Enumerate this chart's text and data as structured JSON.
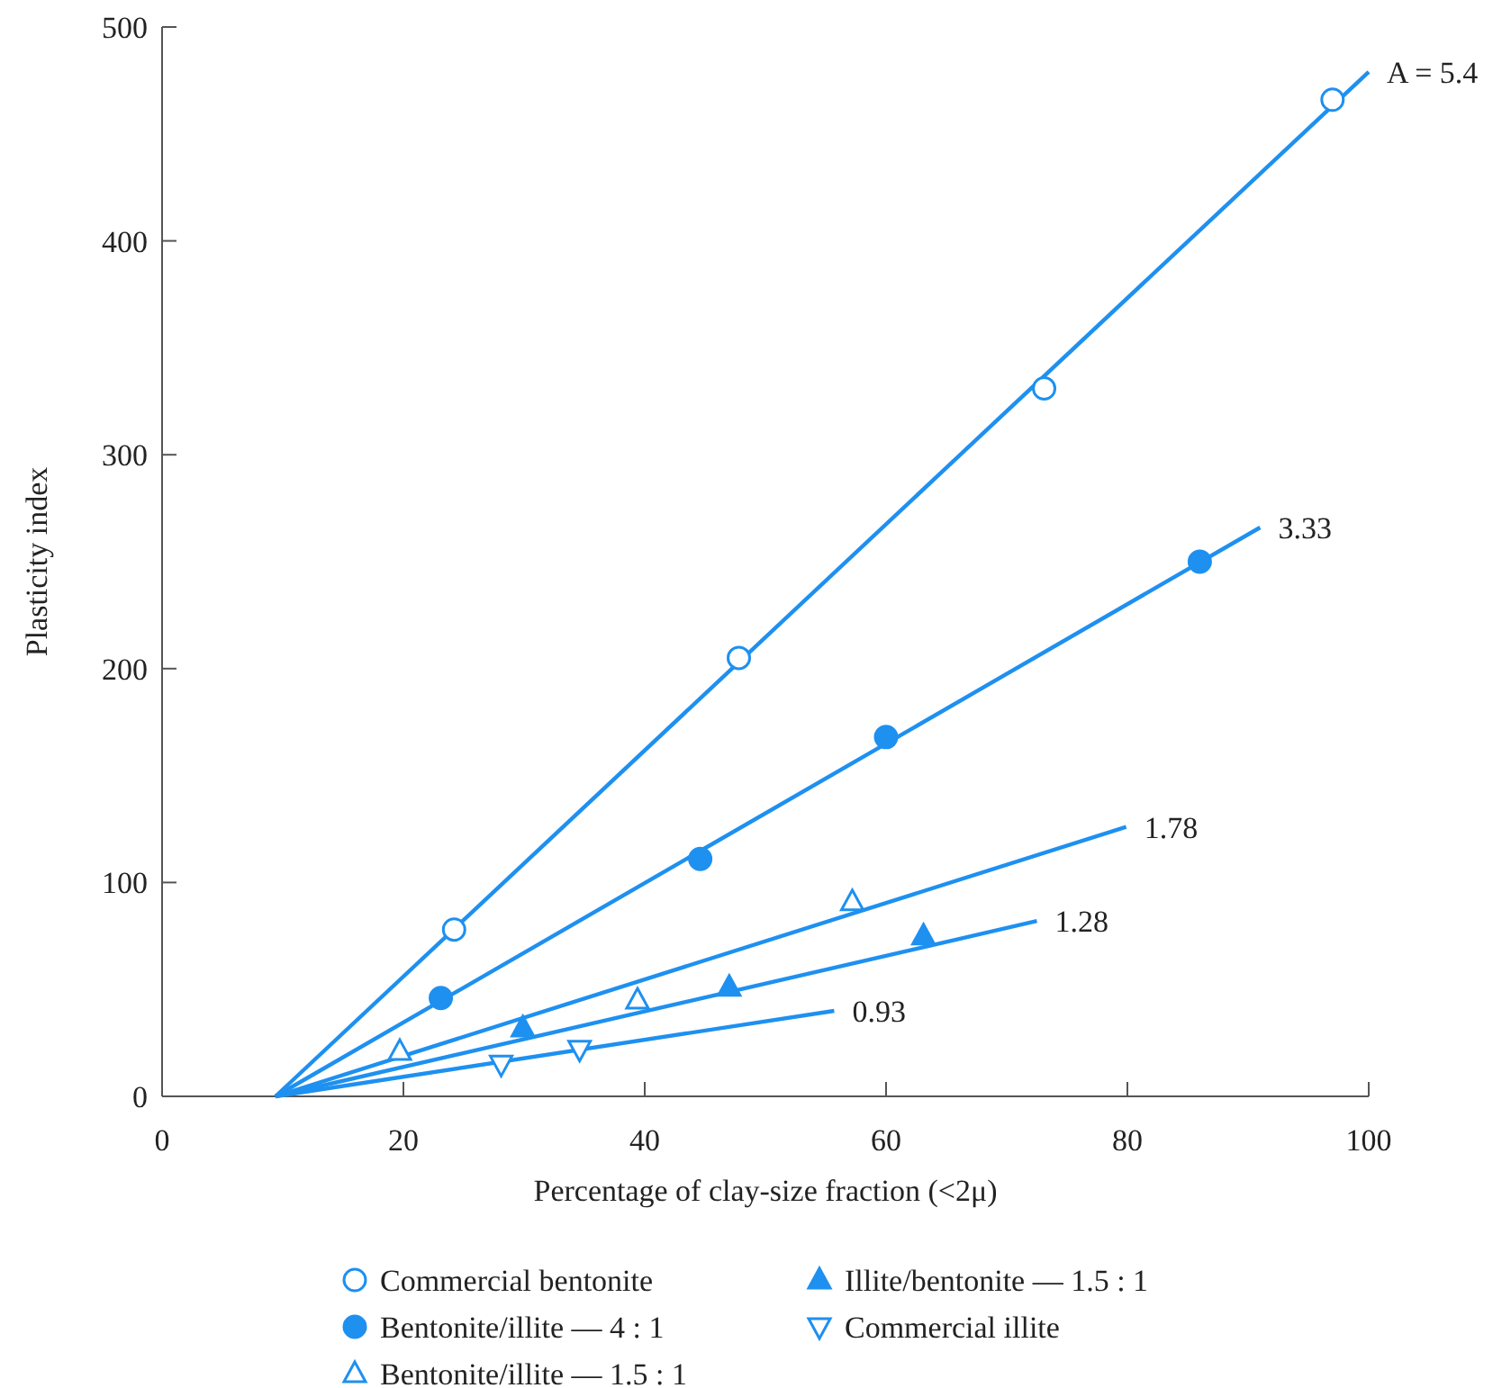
{
  "chart_data": {
    "type": "scatter",
    "xlabel": "Percentage of clay-size fraction (<2μ)",
    "ylabel": "Plasticity index",
    "xlim": [
      0,
      100
    ],
    "xticks": [
      0,
      20,
      40,
      60,
      80,
      100
    ],
    "ylim": [
      0,
      500
    ],
    "yticks": [
      0,
      100,
      200,
      300,
      400,
      500
    ],
    "grid": false,
    "legend": "bottom",
    "series": [
      {
        "name": "Commercial bentonite",
        "color": "#1e90f0",
        "marker": "circle-open",
        "x": [
          24.2,
          47.8,
          73.1,
          97
        ],
        "values": [
          78,
          205,
          331,
          466
        ]
      },
      {
        "name": "Bentonite/illite — 4 : 1",
        "color": "#1e90f0",
        "marker": "circle",
        "x": [
          23.1,
          44.6,
          60,
          86
        ],
        "values": [
          46,
          111,
          168,
          250
        ]
      },
      {
        "name": "Bentonite/illite — 1.5 : 1",
        "color": "#1e90f0",
        "marker": "triangle-open",
        "x": [
          19.7,
          39.4,
          57.2
        ],
        "values": [
          21,
          45,
          91
        ]
      },
      {
        "name": "Illite/bentonite — 1.5 : 1",
        "color": "#1e90f0",
        "marker": "triangle",
        "x": [
          29.9,
          47,
          63.1
        ],
        "values": [
          32,
          51,
          75
        ]
      },
      {
        "name": "Commercial illite",
        "color": "#1e90f0",
        "marker": "triangle-down-open",
        "x": [
          28.1,
          34.6
        ],
        "values": [
          15,
          22
        ]
      },
      {
        "type": "line",
        "color": "#1e90f0",
        "x": [
          9.4,
          100
        ],
        "values": [
          0,
          479
        ]
      },
      {
        "type": "line",
        "color": "#1e90f0",
        "x": [
          9.4,
          91
        ],
        "values": [
          0,
          266
        ]
      },
      {
        "type": "line",
        "color": "#1e90f0",
        "x": [
          9.4,
          79.9
        ],
        "values": [
          0,
          126
        ]
      },
      {
        "type": "line",
        "color": "#1e90f0",
        "x": [
          9.4,
          72.5
        ],
        "values": [
          0,
          82
        ]
      },
      {
        "type": "line",
        "color": "#1e90f0",
        "x": [
          9.4,
          55.7
        ],
        "values": [
          0,
          40
        ]
      }
    ],
    "annotations": [
      {
        "text": "A = 5.4",
        "x": 100,
        "y": 479
      },
      {
        "text": "3.33",
        "x": 91,
        "y": 266
      },
      {
        "text": "1.78",
        "x": 79.9,
        "y": 126
      },
      {
        "text": "1.28",
        "x": 72.5,
        "y": 82
      },
      {
        "text": "0.93",
        "x": 55.7,
        "y": 40
      }
    ]
  }
}
